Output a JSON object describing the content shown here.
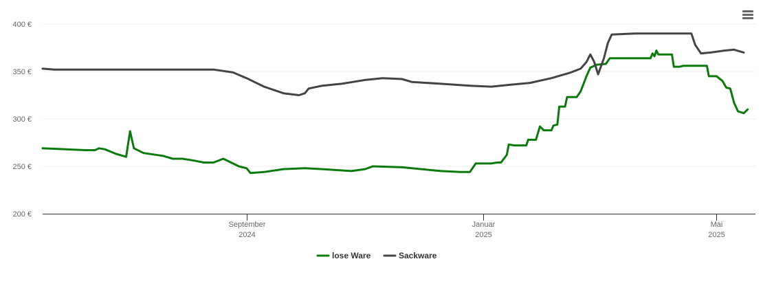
{
  "chart_data": {
    "type": "line",
    "title": "",
    "xlabel": "",
    "ylabel": "",
    "y_unit": "€",
    "ylim": [
      200,
      400
    ],
    "y_ticks": [
      {
        "value": 200,
        "label": "200 €"
      },
      {
        "value": 250,
        "label": "250 €"
      },
      {
        "value": 300,
        "label": "300 €"
      },
      {
        "value": 350,
        "label": "350 €"
      },
      {
        "value": 400,
        "label": "400 €"
      }
    ],
    "xlim": [
      "2024-05-19",
      "2025-05-21"
    ],
    "x_ticks": [
      {
        "date": "2024-09-01",
        "line1": "September",
        "line2": "2024"
      },
      {
        "date": "2025-01-01",
        "line1": "Januar",
        "line2": "2025"
      },
      {
        "date": "2025-05-01",
        "line1": "Mai",
        "line2": "2025"
      }
    ],
    "grid": true,
    "legend_position": "bottom-center",
    "series": [
      {
        "name": "lose Ware",
        "color": "#0a7a0a",
        "points": [
          [
            "2024-05-19",
            269
          ],
          [
            "2024-06-10",
            267
          ],
          [
            "2024-06-15",
            267
          ],
          [
            "2024-06-17",
            269
          ],
          [
            "2024-06-20",
            268
          ],
          [
            "2024-06-26",
            263
          ],
          [
            "2024-07-01",
            260
          ],
          [
            "2024-07-03",
            287
          ],
          [
            "2024-07-05",
            269
          ],
          [
            "2024-07-10",
            264
          ],
          [
            "2024-07-20",
            261
          ],
          [
            "2024-07-25",
            258
          ],
          [
            "2024-07-30",
            258
          ],
          [
            "2024-08-05",
            256
          ],
          [
            "2024-08-10",
            254
          ],
          [
            "2024-08-15",
            254
          ],
          [
            "2024-08-20",
            258
          ],
          [
            "2024-08-28",
            250
          ],
          [
            "2024-09-01",
            248
          ],
          [
            "2024-09-03",
            243
          ],
          [
            "2024-09-10",
            244
          ],
          [
            "2024-09-20",
            247
          ],
          [
            "2024-10-01",
            248
          ],
          [
            "2024-10-10",
            247
          ],
          [
            "2024-10-25",
            245
          ],
          [
            "2024-11-01",
            247
          ],
          [
            "2024-11-05",
            250
          ],
          [
            "2024-11-20",
            249
          ],
          [
            "2024-12-10",
            245
          ],
          [
            "2024-12-20",
            244
          ],
          [
            "2024-12-25",
            244
          ],
          [
            "2024-12-28",
            253
          ],
          [
            "2025-01-05",
            253
          ],
          [
            "2025-01-08",
            254
          ],
          [
            "2025-01-10",
            254
          ],
          [
            "2025-01-13",
            262
          ],
          [
            "2025-01-14",
            273
          ],
          [
            "2025-01-17",
            272
          ],
          [
            "2025-01-21",
            272
          ],
          [
            "2025-01-23",
            272
          ],
          [
            "2025-01-24",
            278
          ],
          [
            "2025-01-28",
            278
          ],
          [
            "2025-01-30",
            292
          ],
          [
            "2025-02-01",
            288
          ],
          [
            "2025-02-05",
            288
          ],
          [
            "2025-02-06",
            293
          ],
          [
            "2025-02-08",
            294
          ],
          [
            "2025-02-09",
            313
          ],
          [
            "2025-02-12",
            313
          ],
          [
            "2025-02-13",
            323
          ],
          [
            "2025-02-18",
            323
          ],
          [
            "2025-02-20",
            329
          ],
          [
            "2025-02-23",
            345
          ],
          [
            "2025-02-25",
            354
          ],
          [
            "2025-02-28",
            357
          ],
          [
            "2025-03-05",
            358
          ],
          [
            "2025-03-07",
            364
          ],
          [
            "2025-03-20",
            364
          ],
          [
            "2025-03-25",
            364
          ],
          [
            "2025-03-28",
            364
          ],
          [
            "2025-03-29",
            369
          ],
          [
            "2025-03-30",
            366
          ],
          [
            "2025-03-31",
            372
          ],
          [
            "2025-04-01",
            368
          ],
          [
            "2025-04-02",
            368
          ],
          [
            "2025-04-08",
            368
          ],
          [
            "2025-04-09",
            355
          ],
          [
            "2025-04-12",
            355
          ],
          [
            "2025-04-14",
            356
          ],
          [
            "2025-04-15",
            356
          ],
          [
            "2025-04-17",
            356
          ],
          [
            "2025-04-21",
            356
          ],
          [
            "2025-04-23",
            356
          ],
          [
            "2025-04-26",
            356
          ],
          [
            "2025-04-27",
            345
          ],
          [
            "2025-05-01",
            345
          ],
          [
            "2025-05-04",
            340
          ],
          [
            "2025-05-06",
            333
          ],
          [
            "2025-05-08",
            332
          ],
          [
            "2025-05-10",
            317
          ],
          [
            "2025-05-12",
            308
          ],
          [
            "2025-05-15",
            306
          ],
          [
            "2025-05-17",
            310
          ]
        ]
      },
      {
        "name": "Sackware",
        "color": "#434348",
        "points": [
          [
            "2024-05-19",
            353
          ],
          [
            "2024-05-25",
            352
          ],
          [
            "2024-06-15",
            352
          ],
          [
            "2024-07-15",
            352
          ],
          [
            "2024-08-15",
            352
          ],
          [
            "2024-08-25",
            349
          ],
          [
            "2024-09-01",
            343
          ],
          [
            "2024-09-10",
            334
          ],
          [
            "2024-09-20",
            327
          ],
          [
            "2024-09-28",
            325
          ],
          [
            "2024-10-01",
            327
          ],
          [
            "2024-10-03",
            332
          ],
          [
            "2024-10-10",
            335
          ],
          [
            "2024-10-20",
            337
          ],
          [
            "2024-11-01",
            341
          ],
          [
            "2024-11-10",
            343
          ],
          [
            "2024-11-20",
            342
          ],
          [
            "2024-11-25",
            339
          ],
          [
            "2024-12-10",
            337
          ],
          [
            "2024-12-25",
            335
          ],
          [
            "2025-01-05",
            334
          ],
          [
            "2025-01-15",
            336
          ],
          [
            "2025-01-25",
            338
          ],
          [
            "2025-02-05",
            343
          ],
          [
            "2025-02-15",
            349
          ],
          [
            "2025-02-20",
            353
          ],
          [
            "2025-02-23",
            360
          ],
          [
            "2025-02-25",
            368
          ],
          [
            "2025-02-27",
            360
          ],
          [
            "2025-03-01",
            347
          ],
          [
            "2025-03-04",
            364
          ],
          [
            "2025-03-06",
            380
          ],
          [
            "2025-03-08",
            389
          ],
          [
            "2025-03-20",
            390
          ],
          [
            "2025-04-10",
            390
          ],
          [
            "2025-04-18",
            390
          ],
          [
            "2025-04-20",
            378
          ],
          [
            "2025-04-23",
            369
          ],
          [
            "2025-04-28",
            370
          ],
          [
            "2025-05-05",
            372
          ],
          [
            "2025-05-10",
            373
          ],
          [
            "2025-05-15",
            370
          ]
        ]
      }
    ]
  },
  "colors": {
    "grid": "#ececec",
    "axis": "#333333",
    "tick_text": "#666666",
    "menu_icon": "#666666"
  },
  "menu": {
    "icon": "hamburger-menu-icon"
  }
}
